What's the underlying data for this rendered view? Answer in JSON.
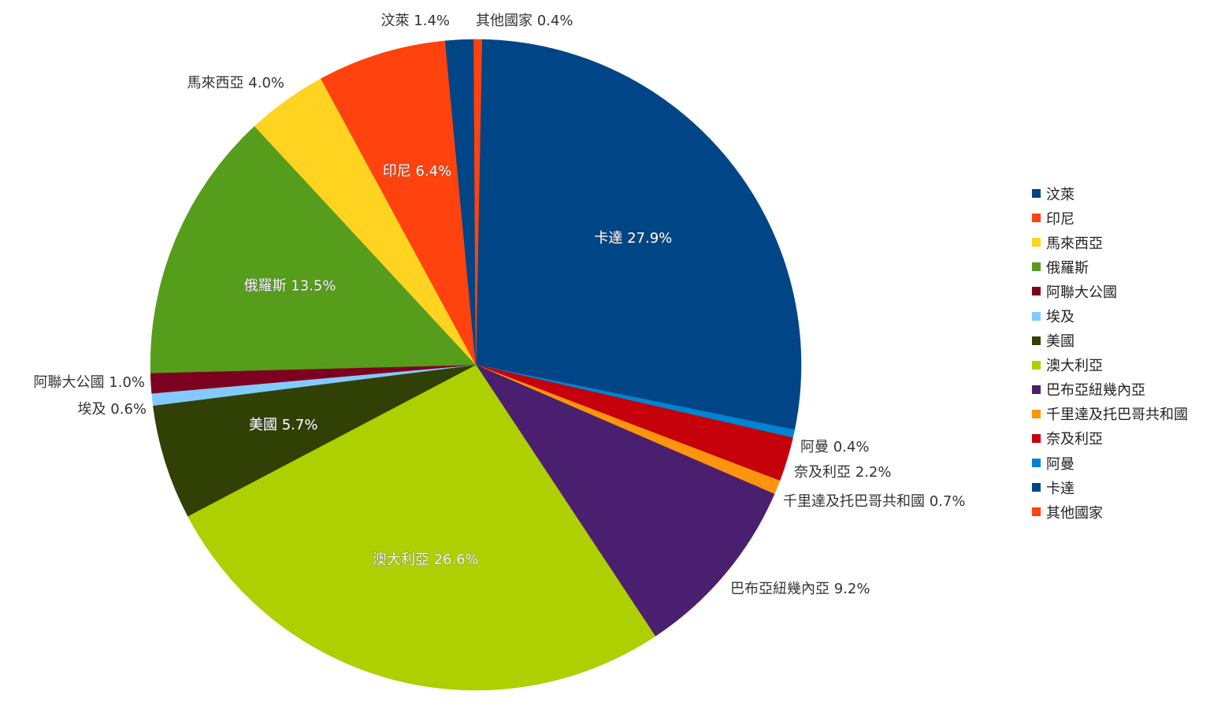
{
  "chart_data": {
    "type": "pie",
    "slices": [
      {
        "label": "卡達",
        "value": 27.9,
        "display": "27.9%",
        "color": "#004586"
      },
      {
        "label": "阿曼",
        "value": 0.4,
        "display": "0.4%",
        "color": "#0084d1"
      },
      {
        "label": "奈及利亞",
        "value": 2.2,
        "display": "2.2%",
        "color": "#c5000b"
      },
      {
        "label": "千里達及托巴哥共和國",
        "value": 0.7,
        "display": "0.7%",
        "color": "#ff950e"
      },
      {
        "label": "巴布亞紐幾內亞",
        "value": 9.2,
        "display": "9.2%",
        "color": "#4b1f6f"
      },
      {
        "label": "澳大利亞",
        "value": 26.6,
        "display": "26.6%",
        "color": "#aecf00"
      },
      {
        "label": "美國",
        "value": 5.7,
        "display": "5.7%",
        "color": "#314004"
      },
      {
        "label": "埃及",
        "value": 0.6,
        "display": "0.6%",
        "color": "#83caff"
      },
      {
        "label": "阿聯大公國",
        "value": 1.0,
        "display": "1.0%",
        "color": "#7e0021"
      },
      {
        "label": "俄羅斯",
        "value": 13.5,
        "display": "13.5%",
        "color": "#579d1c"
      },
      {
        "label": "馬來西亞",
        "value": 4.0,
        "display": "4.0%",
        "color": "#ffd320"
      },
      {
        "label": "印尼",
        "value": 6.4,
        "display": "6.4%",
        "color": "#ff420e"
      },
      {
        "label": "汶萊",
        "value": 1.4,
        "display": "1.4%",
        "color": "#004586"
      },
      {
        "label": "其他國家",
        "value": 0.4,
        "display": "0.4%",
        "color": "#ff420e"
      }
    ],
    "legend": {
      "placement": "right",
      "entries": [
        {
          "label": "汶萊",
          "color": "#004586"
        },
        {
          "label": "印尼",
          "color": "#ff420e"
        },
        {
          "label": "馬來西亞",
          "color": "#ffd320"
        },
        {
          "label": "俄羅斯",
          "color": "#579d1c"
        },
        {
          "label": "阿聯大公國",
          "color": "#7e0021"
        },
        {
          "label": "埃及",
          "color": "#83caff"
        },
        {
          "label": "美國",
          "color": "#314004"
        },
        {
          "label": "澳大利亞",
          "color": "#aecf00"
        },
        {
          "label": "巴布亞紐幾內亞",
          "color": "#4b1f6f"
        },
        {
          "label": "千里達及托巴哥共和國",
          "color": "#ff950e"
        },
        {
          "label": "奈及利亞",
          "color": "#c5000b"
        },
        {
          "label": "阿曼",
          "color": "#0084d1"
        },
        {
          "label": "卡達",
          "color": "#004586"
        },
        {
          "label": "其他國家",
          "color": "#ff420e"
        }
      ]
    }
  }
}
